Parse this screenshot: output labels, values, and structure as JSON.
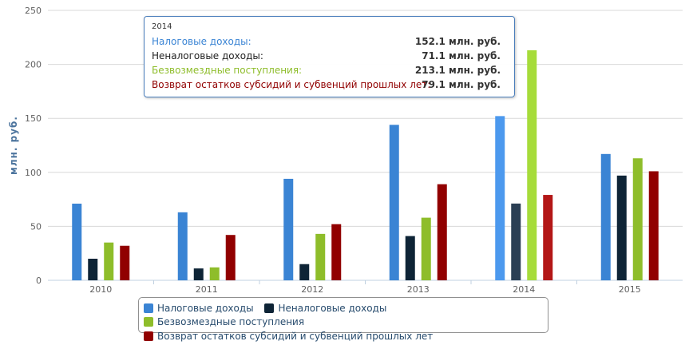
{
  "chart_data": {
    "type": "bar",
    "ylabel": "млн. руб.",
    "ylim": [
      0,
      250
    ],
    "yticks": [
      "0",
      "50",
      "100",
      "150",
      "200",
      "250"
    ],
    "categories": [
      "2010",
      "2011",
      "2012",
      "2013",
      "2014",
      "2015"
    ],
    "series": [
      {
        "name": "Налоговые доходы",
        "color": "#3a84d4",
        "values": [
          71,
          63,
          94,
          144,
          152.1,
          117
        ]
      },
      {
        "name": "Неналоговые доходы",
        "color": "#0e2436",
        "values": [
          20,
          11,
          15,
          41,
          71.1,
          97
        ]
      },
      {
        "name": "Безвозмездные поступления",
        "color": "#8ebd2a",
        "values": [
          35,
          12,
          43,
          58,
          213.1,
          113
        ]
      },
      {
        "name": "Возврат остатков субсидий и субвенций прошлых лет",
        "color": "#910000",
        "values": [
          32,
          42,
          52,
          89,
          79.1,
          101
        ]
      }
    ],
    "highlighted_category": "2014",
    "grid": true,
    "legend_position": "bottom-center"
  },
  "tooltip": {
    "title": "2014",
    "rows": [
      {
        "label": "Налоговые доходы:",
        "value": "152.1 млн. руб.",
        "color": "#3a84d4"
      },
      {
        "label": "Неналоговые доходы:",
        "value": "71.1 млн. руб.",
        "color": "#222222"
      },
      {
        "label": "Безвозмездные поступления:",
        "value": "213.1 млн. руб.",
        "color": "#8ebd2a"
      },
      {
        "label": "Возврат остатков субсидий и субвенций прошлых лет:",
        "value": "79.1 млн. руб.",
        "color": "#910000"
      }
    ]
  }
}
